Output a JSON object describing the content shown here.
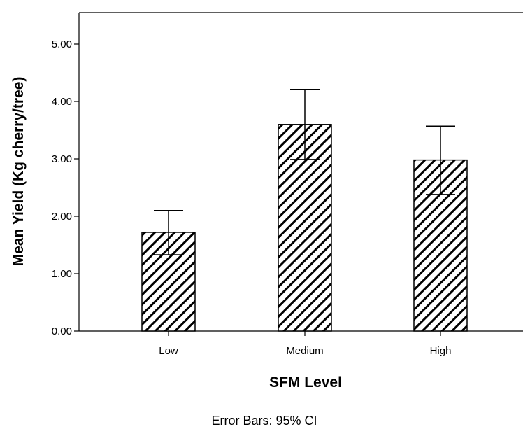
{
  "chart_data": {
    "type": "bar",
    "categories": [
      "Low",
      "Medium",
      "High"
    ],
    "values": [
      1.72,
      3.6,
      2.98
    ],
    "error_bars": {
      "type": "95% CI",
      "lower": [
        1.33,
        2.99,
        2.38
      ],
      "upper": [
        2.1,
        4.21,
        3.57
      ]
    },
    "xlabel": "SFM Level",
    "ylabel": "Mean Yield (Kg cherry/tree)",
    "ylim": [
      0,
      5.5
    ],
    "yticks": [
      0,
      1,
      2,
      3,
      4,
      5
    ],
    "ytick_labels": [
      "0.00",
      "1.00",
      "2.00",
      "3.00",
      "4.00",
      "5.00"
    ],
    "footnote": "Error Bars: 95% CI",
    "grid": false,
    "bar_fill": "diagonal hatch",
    "colors": {
      "bar_hatch": "#000000",
      "bar_outline": "#000000",
      "background": "#ffffff"
    }
  }
}
